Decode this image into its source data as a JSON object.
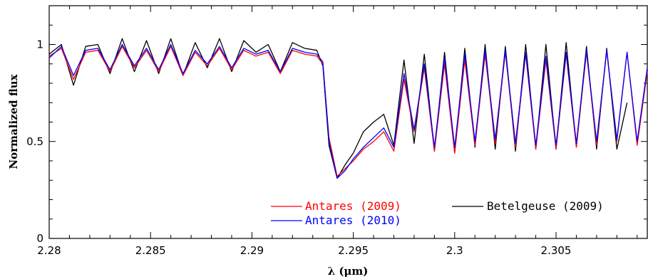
{
  "chart_data": {
    "type": "line",
    "xlabel": "λ (μm)",
    "ylabel": "Normalized flux",
    "xlim": [
      2.28,
      2.3095
    ],
    "ylim": [
      0,
      1.2
    ],
    "x_ticks": [
      2.28,
      2.285,
      2.29,
      2.295,
      2.3,
      2.305
    ],
    "x_tick_labels": [
      "2.28",
      "2.285",
      "2.29",
      "2.295",
      "2.3",
      "2.305"
    ],
    "y_ticks": [
      0,
      0.5,
      1
    ],
    "y_tick_labels": [
      "0",
      "0.5",
      "1"
    ],
    "grid": false,
    "legend_position": "bottom-center",
    "colors": {
      "antares_2009": "#ff0000",
      "antares_2010": "#0000ff",
      "betelgeuse_2009": "#000000"
    },
    "series": [
      {
        "name": "Antares (2009)",
        "x": [
          2.28,
          2.2806,
          2.2812,
          2.2818,
          2.2824,
          2.283,
          2.2836,
          2.2842,
          2.2848,
          2.2854,
          2.286,
          2.2866,
          2.2872,
          2.2878,
          2.2884,
          2.289,
          2.2896,
          2.2902,
          2.2908,
          2.2914,
          2.292,
          2.2926,
          2.2932,
          2.2935,
          2.2938,
          2.2942,
          2.2946,
          2.295,
          2.2955,
          2.296,
          2.2965,
          2.297,
          2.2975,
          2.298,
          2.2985,
          2.299,
          2.2995,
          2.3,
          2.3005,
          2.301,
          2.3015,
          2.302,
          2.3025,
          2.303,
          2.3035,
          2.304,
          2.3045,
          2.305,
          2.3055,
          2.306,
          2.3065,
          2.307,
          2.3075,
          2.308,
          2.3085,
          2.309,
          2.3095
        ],
        "y": [
          0.94,
          0.98,
          0.82,
          0.96,
          0.97,
          0.86,
          0.99,
          0.88,
          0.97,
          0.86,
          0.99,
          0.84,
          0.96,
          0.89,
          0.98,
          0.87,
          0.97,
          0.94,
          0.96,
          0.85,
          0.97,
          0.95,
          0.94,
          0.9,
          0.52,
          0.32,
          0.36,
          0.4,
          0.46,
          0.5,
          0.55,
          0.45,
          0.82,
          0.55,
          0.88,
          0.45,
          0.9,
          0.44,
          0.92,
          0.48,
          0.95,
          0.49,
          0.96,
          0.47,
          0.95,
          0.46,
          0.92,
          0.46,
          0.95,
          0.47,
          0.96,
          0.48,
          0.97,
          0.5,
          0.96,
          0.48,
          0.86
        ]
      },
      {
        "name": "Antares (2010)",
        "x": [
          2.28,
          2.2806,
          2.2812,
          2.2818,
          2.2824,
          2.283,
          2.2836,
          2.2842,
          2.2848,
          2.2854,
          2.286,
          2.2866,
          2.2872,
          2.2878,
          2.2884,
          2.289,
          2.2896,
          2.2902,
          2.2908,
          2.2914,
          2.292,
          2.2926,
          2.2932,
          2.2935,
          2.2938,
          2.2942,
          2.2946,
          2.295,
          2.2955,
          2.296,
          2.2965,
          2.297,
          2.2975,
          2.298,
          2.2985,
          2.299,
          2.2995,
          2.3,
          2.3005,
          2.301,
          2.3015,
          2.302,
          2.3025,
          2.303,
          2.3035,
          2.304,
          2.3045,
          2.305,
          2.3055,
          2.306,
          2.3065,
          2.307,
          2.3075,
          2.308,
          2.3085,
          2.309,
          2.3095
        ],
        "y": [
          0.93,
          0.99,
          0.84,
          0.97,
          0.98,
          0.87,
          1.0,
          0.89,
          0.98,
          0.87,
          1.0,
          0.85,
          0.97,
          0.9,
          0.99,
          0.88,
          0.98,
          0.95,
          0.97,
          0.86,
          0.98,
          0.96,
          0.95,
          0.91,
          0.5,
          0.31,
          0.35,
          0.41,
          0.47,
          0.52,
          0.57,
          0.47,
          0.85,
          0.56,
          0.9,
          0.47,
          0.93,
          0.47,
          0.95,
          0.5,
          0.97,
          0.51,
          0.97,
          0.49,
          0.96,
          0.48,
          0.94,
          0.48,
          0.96,
          0.49,
          0.97,
          0.5,
          0.97,
          0.51,
          0.96,
          0.5,
          0.88
        ]
      },
      {
        "name": "Betelgeuse (2009)",
        "x": [
          2.28,
          2.2806,
          2.2812,
          2.2818,
          2.2824,
          2.283,
          2.2836,
          2.2842,
          2.2848,
          2.2854,
          2.286,
          2.2866,
          2.2872,
          2.2878,
          2.2884,
          2.289,
          2.2896,
          2.2902,
          2.2908,
          2.2914,
          2.292,
          2.2926,
          2.2932,
          2.2935,
          2.2938,
          2.2942,
          2.2946,
          2.295,
          2.2955,
          2.296,
          2.2965,
          2.297,
          2.2975,
          2.298,
          2.2985,
          2.299,
          2.2995,
          2.3,
          2.3005,
          2.301,
          2.3015,
          2.302,
          2.3025,
          2.303,
          2.3035,
          2.304,
          2.3045,
          2.305,
          2.3055,
          2.306,
          2.3065,
          2.307,
          2.3075,
          2.308,
          2.3085
        ],
        "y": [
          0.95,
          1.0,
          0.79,
          0.99,
          1.0,
          0.85,
          1.03,
          0.86,
          1.02,
          0.85,
          1.03,
          0.84,
          1.01,
          0.88,
          1.03,
          0.86,
          1.02,
          0.96,
          1.0,
          0.86,
          1.01,
          0.98,
          0.97,
          0.89,
          0.48,
          0.31,
          0.38,
          0.44,
          0.55,
          0.6,
          0.64,
          0.48,
          0.92,
          0.49,
          0.95,
          0.45,
          0.96,
          0.44,
          0.98,
          0.47,
          1.0,
          0.46,
          0.99,
          0.45,
          1.0,
          0.46,
          1.0,
          0.46,
          1.01,
          0.47,
          0.99,
          0.46,
          0.98,
          0.46,
          0.7
        ]
      }
    ]
  }
}
